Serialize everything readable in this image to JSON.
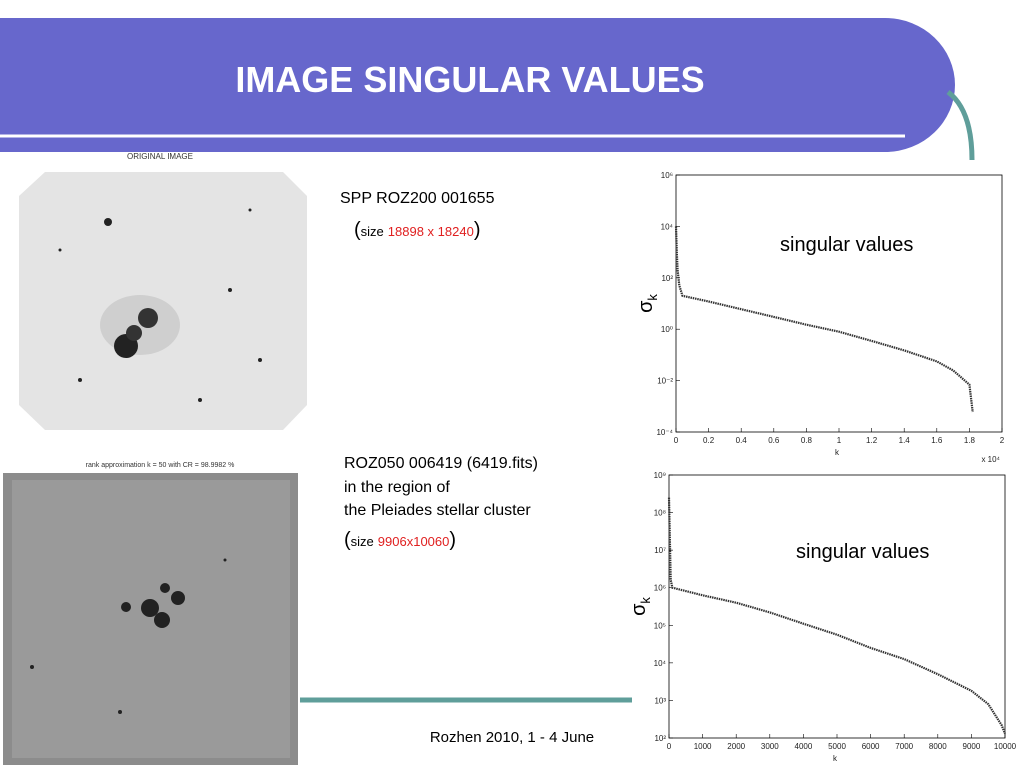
{
  "header": {
    "title": "IMAGE SINGULAR VALUES"
  },
  "images": [
    {
      "caption": "ORIGINAL IMAGE"
    },
    {
      "caption": "rank approximation k =  50 with  CR =  98.9982 %"
    }
  ],
  "brackets": [
    "(",
    ")"
  ],
  "blocks": [
    {
      "lines": [
        "SPP ROZ200 001655"
      ],
      "size_label": "size",
      "size_value": "18898 x 18240"
    },
    {
      "lines": [
        "ROZ050 006419 (6419.fits)",
        "in the region of",
        "the Pleiades stellar cluster"
      ],
      "size_label": "size",
      "size_value": "9906x10060"
    }
  ],
  "footer": "Rozhen 2010, 1 - 4 June",
  "chart_data": [
    {
      "type": "line",
      "log_y": true,
      "annotation": "singular values",
      "x_label": "k",
      "x_multiplier": "x 10⁴",
      "y_label": "σ",
      "y_label_sub": "k",
      "color": "#333333",
      "x": [
        0,
        0.005,
        0.01,
        0.02,
        0.04,
        0.2,
        0.4,
        0.6,
        0.8,
        1.0,
        1.2,
        1.4,
        1.6,
        1.7,
        1.8,
        1.82
      ],
      "values": [
        10000,
        1000,
        200,
        50,
        20,
        12,
        6,
        3,
        1.5,
        0.8,
        0.35,
        0.15,
        0.056,
        0.025,
        0.007,
        0.0006
      ],
      "xlim": [
        0,
        2
      ],
      "xticks": [
        0,
        0.2,
        0.4,
        0.6,
        0.8,
        1,
        1.2,
        1.4,
        1.6,
        1.8,
        2
      ],
      "ylim": [
        0.0001,
        1000000
      ],
      "yticks": [
        {
          "value": 0.0001,
          "label": "10⁻⁴"
        },
        {
          "value": 0.01,
          "label": "10⁻²"
        },
        {
          "value": 1,
          "label": "10⁰"
        },
        {
          "value": 100,
          "label": "10²"
        },
        {
          "value": 10000,
          "label": "10⁴"
        },
        {
          "value": 1000000,
          "label": "10⁶"
        }
      ]
    },
    {
      "type": "line",
      "log_y": true,
      "annotation": "singular values",
      "x_label": "k",
      "y_label": "σ",
      "y_label_sub": "k",
      "color": "#333333",
      "x": [
        0,
        50,
        100,
        1000,
        2000,
        3000,
        4000,
        5000,
        6000,
        7000,
        8000,
        9000,
        9500,
        9900,
        10000
      ],
      "values": [
        250000000,
        1600000,
        1000000,
        630000,
        400000,
        220000,
        110000,
        56000,
        25000,
        12600,
        5000,
        1800,
        800,
        220,
        130
      ],
      "xlim": [
        0,
        10000
      ],
      "xticks": [
        0,
        1000,
        2000,
        3000,
        4000,
        5000,
        6000,
        7000,
        8000,
        9000,
        10000
      ],
      "ylim": [
        100,
        1000000000
      ],
      "yticks": [
        {
          "value": 100,
          "label": "10²"
        },
        {
          "value": 1000,
          "label": "10³"
        },
        {
          "value": 10000,
          "label": "10⁴"
        },
        {
          "value": 100000,
          "label": "10⁵"
        },
        {
          "value": 1000000,
          "label": "10⁶"
        },
        {
          "value": 10000000,
          "label": "10⁷"
        },
        {
          "value": 100000000,
          "label": "10⁸"
        },
        {
          "value": 1000000000,
          "label": "10⁹"
        }
      ]
    }
  ]
}
